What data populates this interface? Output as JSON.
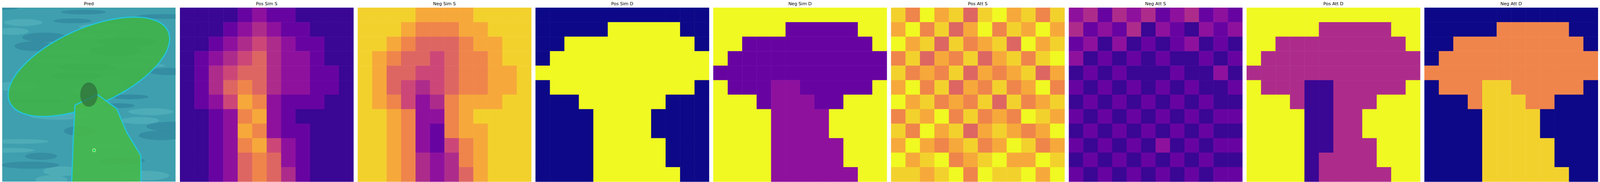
{
  "chart_data": [
    {
      "type": "image",
      "title": "Pred"
    },
    {
      "type": "heatmap",
      "title": "Pos Sim S",
      "zlim": [
        0,
        1
      ],
      "tick_labels": false,
      "cells": [
        [
          0.1,
          0.1,
          0.1,
          0.1,
          0.2,
          0.3,
          0.2,
          0.2,
          0.1,
          0.1,
          0.1,
          0.1
        ],
        [
          0.1,
          0.1,
          0.1,
          0.2,
          0.3,
          0.4,
          0.3,
          0.2,
          0.2,
          0.1,
          0.1,
          0.1
        ],
        [
          0.1,
          0.1,
          0.2,
          0.3,
          0.4,
          0.5,
          0.4,
          0.3,
          0.2,
          0.2,
          0.1,
          0.1
        ],
        [
          0.1,
          0.2,
          0.3,
          0.4,
          0.5,
          0.6,
          0.4,
          0.3,
          0.3,
          0.2,
          0.1,
          0.1
        ],
        [
          0.1,
          0.2,
          0.4,
          0.5,
          0.6,
          0.6,
          0.4,
          0.3,
          0.3,
          0.2,
          0.2,
          0.1
        ],
        [
          0.1,
          0.2,
          0.4,
          0.6,
          0.7,
          0.6,
          0.4,
          0.3,
          0.3,
          0.2,
          0.2,
          0.1
        ],
        [
          0.1,
          0.2,
          0.3,
          0.5,
          0.8,
          0.7,
          0.3,
          0.2,
          0.2,
          0.2,
          0.1,
          0.1
        ],
        [
          0.1,
          0.1,
          0.2,
          0.3,
          0.7,
          0.8,
          0.3,
          0.2,
          0.1,
          0.1,
          0.1,
          0.1
        ],
        [
          0.1,
          0.1,
          0.2,
          0.3,
          0.8,
          0.7,
          0.3,
          0.2,
          0.2,
          0.1,
          0.1,
          0.1
        ],
        [
          0.1,
          0.1,
          0.2,
          0.3,
          0.7,
          0.8,
          0.5,
          0.3,
          0.2,
          0.1,
          0.1,
          0.1
        ],
        [
          0.1,
          0.1,
          0.2,
          0.3,
          0.6,
          0.7,
          0.6,
          0.3,
          0.2,
          0.1,
          0.1,
          0.1
        ],
        [
          0.1,
          0.1,
          0.2,
          0.3,
          0.6,
          0.7,
          0.6,
          0.4,
          0.2,
          0.1,
          0.1,
          0.1
        ]
      ]
    },
    {
      "type": "heatmap",
      "title": "Neg Sim S",
      "zlim": [
        0,
        1
      ],
      "tick_labels": false,
      "cells": [
        [
          0.9,
          0.9,
          0.9,
          0.9,
          0.8,
          0.8,
          0.8,
          0.8,
          0.9,
          0.9,
          0.9,
          0.9
        ],
        [
          0.9,
          0.9,
          0.9,
          0.8,
          0.7,
          0.7,
          0.7,
          0.8,
          0.8,
          0.9,
          0.9,
          0.9
        ],
        [
          0.9,
          0.9,
          0.8,
          0.7,
          0.6,
          0.6,
          0.6,
          0.7,
          0.8,
          0.8,
          0.9,
          0.9
        ],
        [
          0.9,
          0.8,
          0.7,
          0.6,
          0.6,
          0.5,
          0.6,
          0.7,
          0.7,
          0.8,
          0.9,
          0.9
        ],
        [
          0.9,
          0.8,
          0.6,
          0.6,
          0.5,
          0.5,
          0.6,
          0.7,
          0.7,
          0.8,
          0.8,
          0.9
        ],
        [
          0.9,
          0.8,
          0.6,
          0.5,
          0.4,
          0.5,
          0.6,
          0.7,
          0.7,
          0.8,
          0.8,
          0.9
        ],
        [
          0.9,
          0.8,
          0.7,
          0.5,
          0.3,
          0.4,
          0.7,
          0.8,
          0.8,
          0.8,
          0.9,
          0.9
        ],
        [
          0.9,
          0.9,
          0.8,
          0.7,
          0.3,
          0.3,
          0.7,
          0.8,
          0.9,
          0.9,
          0.9,
          0.9
        ],
        [
          0.9,
          0.9,
          0.8,
          0.7,
          0.3,
          0.2,
          0.7,
          0.8,
          0.8,
          0.9,
          0.9,
          0.9
        ],
        [
          0.9,
          0.9,
          0.8,
          0.7,
          0.3,
          0.2,
          0.5,
          0.7,
          0.8,
          0.9,
          0.9,
          0.9
        ],
        [
          0.9,
          0.9,
          0.8,
          0.7,
          0.4,
          0.3,
          0.4,
          0.7,
          0.8,
          0.9,
          0.9,
          0.9
        ],
        [
          0.9,
          0.9,
          0.8,
          0.7,
          0.4,
          0.3,
          0.4,
          0.6,
          0.8,
          0.9,
          0.9,
          0.9
        ]
      ]
    },
    {
      "type": "heatmap",
      "title": "Pos Sim D",
      "zlim": [
        0,
        1
      ],
      "tick_labels": false,
      "cells": [
        [
          0,
          0,
          0,
          0,
          0,
          0,
          0,
          0,
          0,
          0,
          0,
          0
        ],
        [
          0,
          0,
          0,
          0,
          0,
          1,
          1,
          1,
          1,
          1,
          0,
          0
        ],
        [
          0,
          0,
          1,
          1,
          1,
          1,
          1,
          1,
          1,
          1,
          1,
          0
        ],
        [
          0,
          1,
          1,
          1,
          1,
          1,
          1,
          1,
          1,
          1,
          1,
          1
        ],
        [
          1,
          1,
          1,
          1,
          1,
          1,
          1,
          1,
          1,
          1,
          1,
          1
        ],
        [
          0,
          1,
          1,
          1,
          1,
          1,
          1,
          1,
          1,
          1,
          1,
          0
        ],
        [
          0,
          0,
          0,
          1,
          1,
          1,
          1,
          1,
          1,
          0,
          0,
          0
        ],
        [
          0,
          0,
          0,
          0,
          1,
          1,
          1,
          1,
          0,
          0,
          0,
          0
        ],
        [
          0,
          0,
          0,
          0,
          1,
          1,
          1,
          1,
          0,
          0,
          0,
          0
        ],
        [
          0,
          0,
          0,
          0,
          1,
          1,
          1,
          1,
          1,
          0,
          0,
          0
        ],
        [
          0,
          0,
          0,
          0,
          1,
          1,
          1,
          1,
          1,
          0,
          0,
          0
        ],
        [
          0,
          0,
          0,
          0,
          1,
          1,
          1,
          1,
          1,
          1,
          0,
          0
        ]
      ]
    },
    {
      "type": "heatmap",
      "title": "Neg Sim D",
      "zlim": [
        0,
        1
      ],
      "tick_labels": false,
      "cells": [
        [
          1,
          1,
          1,
          1,
          1,
          1,
          1,
          1,
          1,
          1,
          1,
          1
        ],
        [
          1,
          1,
          1,
          1,
          1,
          0.2,
          0.2,
          0.2,
          0.2,
          0.2,
          1,
          1
        ],
        [
          1,
          1,
          0.2,
          0.2,
          0.2,
          0.2,
          0.2,
          0.2,
          0.2,
          0.2,
          0.2,
          1
        ],
        [
          1,
          0.2,
          0.2,
          0.2,
          0.2,
          0.2,
          0.2,
          0.2,
          0.2,
          0.2,
          0.2,
          0.2
        ],
        [
          0.2,
          0.2,
          0.2,
          0.2,
          0.2,
          0.2,
          0.2,
          0.2,
          0.2,
          0.2,
          0.2,
          0.2
        ],
        [
          1,
          0.2,
          0.2,
          0.2,
          0.3,
          0.3,
          0.2,
          0.2,
          0.2,
          0.2,
          0.2,
          1
        ],
        [
          1,
          1,
          1,
          0.2,
          0.3,
          0.3,
          0.3,
          0.2,
          0.2,
          1,
          1,
          1
        ],
        [
          1,
          1,
          1,
          1,
          0.3,
          0.3,
          0.3,
          0.3,
          1,
          1,
          1,
          1
        ],
        [
          1,
          1,
          1,
          1,
          0.3,
          0.3,
          0.3,
          0.3,
          1,
          1,
          1,
          1
        ],
        [
          1,
          1,
          1,
          1,
          0.3,
          0.3,
          0.3,
          0.3,
          0.3,
          1,
          1,
          1
        ],
        [
          1,
          1,
          1,
          1,
          0.3,
          0.3,
          0.3,
          0.3,
          0.3,
          1,
          1,
          1
        ],
        [
          1,
          1,
          1,
          1,
          0.3,
          0.3,
          0.3,
          0.3,
          0.3,
          0.3,
          1,
          1
        ]
      ]
    },
    {
      "type": "heatmap",
      "title": "Pos Att S",
      "zlim": [
        0,
        1
      ],
      "tick_labels": false,
      "cells": [
        [
          0.9,
          0.7,
          1.0,
          0.8,
          0.9,
          0.6,
          0.9,
          1.0,
          0.8,
          0.9,
          0.7,
          0.9
        ],
        [
          0.8,
          1.0,
          0.7,
          0.9,
          0.6,
          0.8,
          1.0,
          0.7,
          0.9,
          0.8,
          1.0,
          0.8
        ],
        [
          1.0,
          0.8,
          0.9,
          0.6,
          0.9,
          0.7,
          0.8,
          0.9,
          0.6,
          1.0,
          0.8,
          0.9
        ],
        [
          0.7,
          0.9,
          0.6,
          0.8,
          0.7,
          0.9,
          0.6,
          0.8,
          0.9,
          0.7,
          0.9,
          1.0
        ],
        [
          0.9,
          0.7,
          0.8,
          0.7,
          0.9,
          0.6,
          0.8,
          0.7,
          0.8,
          0.9,
          0.6,
          0.8
        ],
        [
          0.8,
          1.0,
          0.7,
          0.9,
          0.6,
          0.8,
          0.7,
          0.9,
          0.7,
          0.8,
          1.0,
          0.7
        ],
        [
          1.0,
          0.8,
          0.9,
          0.7,
          0.8,
          0.7,
          0.9,
          0.6,
          0.9,
          0.7,
          0.8,
          0.9
        ],
        [
          0.7,
          0.9,
          0.8,
          1.0,
          0.7,
          0.9,
          0.7,
          0.8,
          0.7,
          1.0,
          0.9,
          0.8
        ],
        [
          0.9,
          0.7,
          1.0,
          0.8,
          0.9,
          0.6,
          0.8,
          0.9,
          0.8,
          0.7,
          0.8,
          1.0
        ],
        [
          0.8,
          1.0,
          0.8,
          0.7,
          0.8,
          0.9,
          0.7,
          0.8,
          1.0,
          0.9,
          0.7,
          0.8
        ],
        [
          1.0,
          0.8,
          0.9,
          1.0,
          0.7,
          0.8,
          0.9,
          1.0,
          0.8,
          0.8,
          1.0,
          0.9
        ],
        [
          0.9,
          0.9,
          0.8,
          0.9,
          1.0,
          0.7,
          1.0,
          0.9,
          0.9,
          1.0,
          0.8,
          1.0
        ]
      ]
    },
    {
      "type": "heatmap",
      "title": "Neg Att S",
      "zlim": [
        0,
        1
      ],
      "tick_labels": false,
      "cells": [
        [
          0.3,
          0.4,
          0.2,
          0.4,
          0.3,
          0.4,
          0.2,
          0.3,
          0.4,
          0.2,
          0.3,
          0.2
        ],
        [
          0.4,
          0.2,
          0.3,
          0.2,
          0.4,
          0.1,
          0.3,
          0.2,
          0.1,
          0.3,
          0.2,
          0.3
        ],
        [
          0.2,
          0.3,
          0.1,
          0.3,
          0.1,
          0.2,
          0.1,
          0.2,
          0.3,
          0.1,
          0.2,
          0.1
        ],
        [
          0.3,
          0.1,
          0.2,
          0.1,
          0.2,
          0.1,
          0.2,
          0.1,
          0.1,
          0.2,
          0.1,
          0.2
        ],
        [
          0.1,
          0.2,
          0.1,
          0.2,
          0.1,
          0.1,
          0.1,
          0.2,
          0.1,
          0.1,
          0.3,
          0.1
        ],
        [
          0.2,
          0.1,
          0.2,
          0.1,
          0.2,
          0.1,
          0.2,
          0.1,
          0.2,
          0.1,
          0.1,
          0.2
        ],
        [
          0.1,
          0.2,
          0.1,
          0.2,
          0.1,
          0.2,
          0.1,
          0.2,
          0.1,
          0.2,
          0.1,
          0.1
        ],
        [
          0.2,
          0.1,
          0.2,
          0.1,
          0.2,
          0.1,
          0.2,
          0.1,
          0.2,
          0.1,
          0.2,
          0.2
        ],
        [
          0.1,
          0.2,
          0.1,
          0.2,
          0.1,
          0.2,
          0.1,
          0.2,
          0.1,
          0.2,
          0.1,
          0.1
        ],
        [
          0.2,
          0.1,
          0.2,
          0.1,
          0.2,
          0.1,
          0.3,
          0.1,
          0.2,
          0.1,
          0.2,
          0.2
        ],
        [
          0.1,
          0.2,
          0.1,
          0.2,
          0.1,
          0.2,
          0.1,
          0.2,
          0.1,
          0.2,
          0.1,
          0.1
        ],
        [
          0.2,
          0.1,
          0.2,
          0.1,
          0.2,
          0.1,
          0.2,
          0.1,
          0.2,
          0.1,
          0.2,
          0.2
        ]
      ]
    },
    {
      "type": "heatmap",
      "title": "Pos Att D",
      "zlim": [
        0,
        1
      ],
      "tick_labels": false,
      "cells": [
        [
          1,
          1,
          1,
          1,
          1,
          1,
          1,
          1,
          1,
          1,
          1,
          1
        ],
        [
          1,
          1,
          1,
          1,
          1,
          0.4,
          0.4,
          0.4,
          0.4,
          0.4,
          1,
          1
        ],
        [
          1,
          1,
          0.4,
          0.4,
          0.4,
          0.4,
          0.4,
          0.4,
          0.4,
          0.4,
          0.4,
          1
        ],
        [
          1,
          0.4,
          0.4,
          0.4,
          0.4,
          0.4,
          0.4,
          0.4,
          0.4,
          0.4,
          0.4,
          0.4
        ],
        [
          0.4,
          0.4,
          0.4,
          0.4,
          0.4,
          0.4,
          0.4,
          0.4,
          0.4,
          0.4,
          0.4,
          0.4
        ],
        [
          1,
          0.4,
          0.4,
          0.4,
          0.1,
          0.1,
          0.4,
          0.4,
          0.4,
          0.4,
          0.4,
          1
        ],
        [
          1,
          1,
          1,
          0.4,
          0.1,
          0.1,
          0.4,
          0.4,
          0.4,
          1,
          1,
          1
        ],
        [
          1,
          1,
          1,
          1,
          0.1,
          0.1,
          0.4,
          0.4,
          1,
          1,
          1,
          1
        ],
        [
          1,
          1,
          1,
          1,
          0.1,
          0.1,
          0.4,
          0.4,
          1,
          1,
          1,
          1
        ],
        [
          1,
          1,
          1,
          1,
          0.1,
          0.1,
          0.4,
          0.4,
          0.4,
          1,
          1,
          1
        ],
        [
          1,
          1,
          1,
          1,
          0.1,
          0.4,
          0.4,
          0.4,
          0.4,
          1,
          1,
          1
        ],
        [
          1,
          1,
          1,
          1,
          0.1,
          0.4,
          0.4,
          0.4,
          0.4,
          0.4,
          1,
          1
        ]
      ]
    },
    {
      "type": "heatmap",
      "title": "Neg Att D",
      "zlim": [
        0,
        1
      ],
      "tick_labels": false,
      "cells": [
        [
          0,
          0,
          0,
          0,
          0,
          0,
          0,
          0,
          0,
          0,
          0,
          0
        ],
        [
          0,
          0,
          0,
          0,
          0,
          0.7,
          0.7,
          0.7,
          0.7,
          0.7,
          0,
          0
        ],
        [
          0,
          0,
          0.7,
          0.7,
          0.7,
          0.7,
          0.7,
          0.7,
          0.7,
          0.7,
          0.7,
          0
        ],
        [
          0,
          0.7,
          0.7,
          0.7,
          0.7,
          0.7,
          0.7,
          0.7,
          0.7,
          0.7,
          0.7,
          0.7
        ],
        [
          0.7,
          0.7,
          0.7,
          0.7,
          0.7,
          0.7,
          0.7,
          0.7,
          0.7,
          0.7,
          0.7,
          0.7
        ],
        [
          0,
          0.7,
          0.7,
          0.7,
          0.9,
          0.9,
          0.7,
          0.7,
          0.7,
          0.7,
          0.7,
          0
        ],
        [
          0,
          0,
          0,
          0.7,
          0.9,
          0.9,
          0.9,
          0.7,
          0.7,
          0,
          0,
          0
        ],
        [
          0,
          0,
          0,
          0,
          0.9,
          0.9,
          0.9,
          0.9,
          0,
          0,
          0,
          0
        ],
        [
          0,
          0,
          0,
          0,
          0.9,
          0.9,
          0.9,
          0.9,
          0,
          0,
          0,
          0
        ],
        [
          0,
          0,
          0,
          0,
          0.9,
          0.9,
          0.9,
          0.9,
          0.9,
          0,
          0,
          0
        ],
        [
          0,
          0,
          0,
          0,
          0.9,
          0.9,
          0.9,
          0.9,
          0.9,
          0,
          0,
          0
        ],
        [
          0,
          0,
          0,
          0,
          0.9,
          0.9,
          0.9,
          0.9,
          0.9,
          0.9,
          0,
          0
        ]
      ]
    }
  ]
}
